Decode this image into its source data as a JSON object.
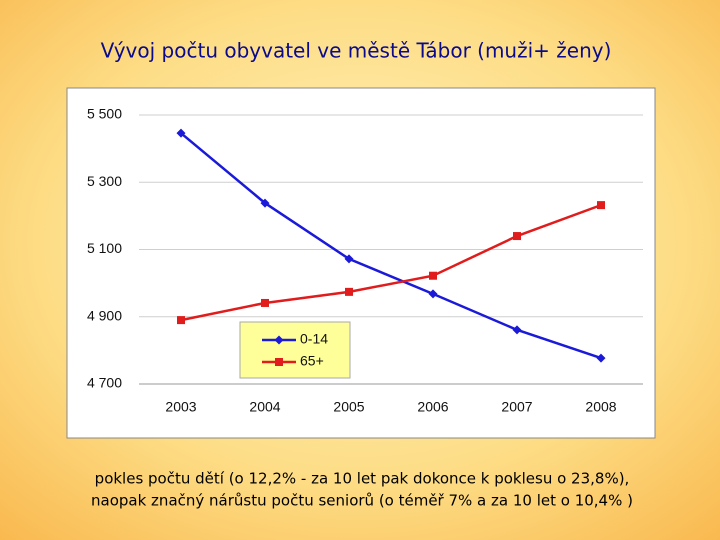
{
  "chart_data": {
    "type": "line",
    "title": "Vývoj počtu obyvatel ve městě Tábor (muži+ ženy)",
    "categories": [
      "2003",
      "2004",
      "2005",
      "2006",
      "2007",
      "2008"
    ],
    "series": [
      {
        "name": "0-14",
        "color": "#1a1ad8",
        "marker": "diamond",
        "values": [
          5446,
          5238,
          5072,
          4968,
          4861,
          4777
        ]
      },
      {
        "name": "65+",
        "color": "#e01c1c",
        "marker": "square",
        "values": [
          4890,
          4941,
          4974,
          5022,
          5140,
          5232
        ]
      }
    ],
    "ylim": [
      4700,
      5500
    ],
    "yticks": [
      {
        "value": 4700,
        "label": "4 700"
      },
      {
        "value": 4900,
        "label": "4 900"
      },
      {
        "value": 5100,
        "label": "5 100"
      },
      {
        "value": 5300,
        "label": "5 300"
      },
      {
        "value": 5500,
        "label": "5 500"
      }
    ],
    "grid": true,
    "annotations": [
      "pokles počtu dětí (o 12,2% - za 10 let pak dokonce k poklesu o 23,8%),",
      "naopak značný nárůstu počtu seniorů (o téměř 7% a za 10 let o 10,4% )"
    ]
  }
}
